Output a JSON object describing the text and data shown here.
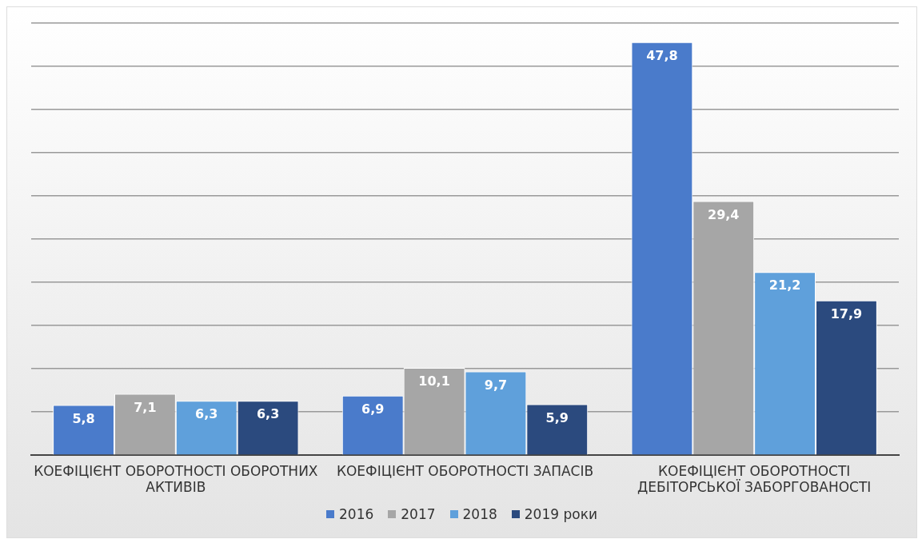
{
  "chart_data": {
    "type": "bar",
    "categories": [
      "КОЕФІЦІЄНТ ОБОРОТНОСТІ ОБОРОТНИХ АКТИВІВ",
      "КОЕФІЦІЄНТ ОБОРОТНОСТІ ЗАПАСІВ",
      "КОЕФІЦІЄНТ ОБОРОТНОСТІ ДЕБІТОРСЬКОЇ ЗАБОРГОВАНОСТІ"
    ],
    "series": [
      {
        "name": "2016",
        "color": "#4a7bcb",
        "values": [
          5.8,
          6.9,
          47.8
        ],
        "value_labels": [
          "5,8",
          "6,9",
          "47,8"
        ]
      },
      {
        "name": "2017",
        "color": "#a6a6a6",
        "values": [
          7.1,
          10.1,
          29.4
        ],
        "value_labels": [
          "7,1",
          "10,1",
          "29,4"
        ]
      },
      {
        "name": "2018",
        "color": "#5fa0db",
        "values": [
          6.3,
          9.7,
          21.2
        ],
        "value_labels": [
          "6,3",
          "9,7",
          "21,2"
        ]
      },
      {
        "name": "2019 роки",
        "color": "#2b4a7e",
        "values": [
          6.3,
          5.9,
          17.9
        ],
        "value_labels": [
          "6,3",
          "5,9",
          "17,9"
        ]
      }
    ],
    "tick_labels": "x",
    "grid": "y",
    "legend": "bottom"
  }
}
